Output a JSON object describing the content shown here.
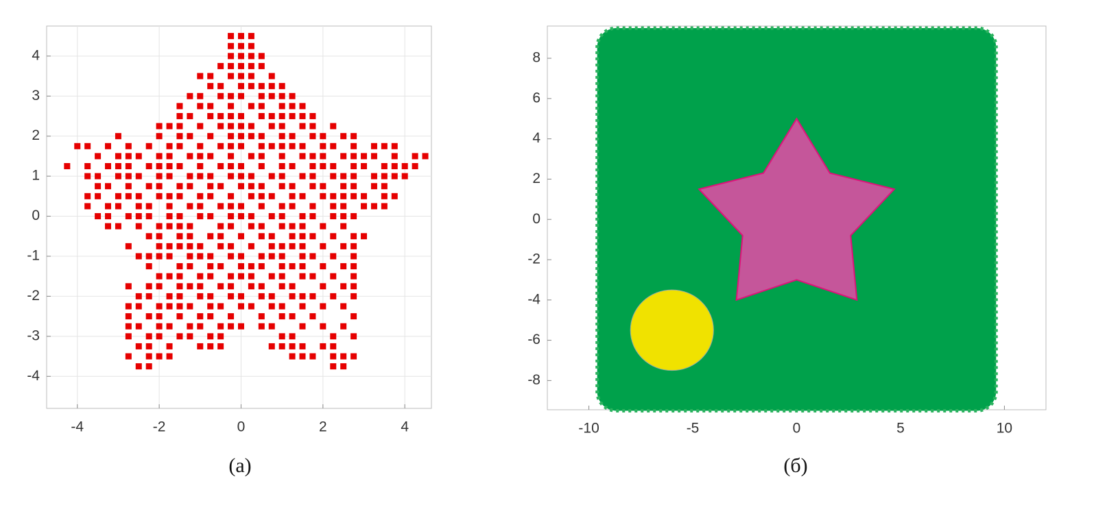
{
  "chart_data": [
    {
      "type": "scatter",
      "caption": "(a)",
      "color": "#e60000",
      "grid": true,
      "xlim": [
        -4.75,
        4.65
      ],
      "ylim": [
        -4.8,
        4.75
      ],
      "xticks": [
        -4,
        -2,
        0,
        2,
        4
      ],
      "yticks": [
        -4,
        -3,
        -2,
        -1,
        0,
        1,
        2,
        3,
        4
      ],
      "rows": [
        {
          "y": 4.5,
          "x": [
            -0.25,
            0,
            0.25
          ]
        },
        {
          "y": 4.25,
          "x": [
            -0.25,
            0,
            0.25
          ]
        },
        {
          "y": 4.0,
          "x": [
            -0.25,
            0,
            0.25,
            0.5
          ]
        },
        {
          "y": 3.75,
          "x": [
            -0.5,
            -0.25,
            0,
            0.25,
            0.5
          ]
        },
        {
          "y": 3.5,
          "x": [
            -1,
            -0.75,
            -0.25,
            0,
            0.25,
            0.75
          ]
        },
        {
          "y": 3.25,
          "x": [
            -0.75,
            -0.5,
            0,
            0.25,
            0.5,
            0.75,
            1
          ]
        },
        {
          "y": 3.0,
          "x": [
            -1.25,
            -1,
            -0.5,
            -0.25,
            0,
            0.5,
            0.75,
            1,
            1.25
          ]
        },
        {
          "y": 2.75,
          "x": [
            -1.5,
            -1,
            -0.75,
            -0.25,
            0.25,
            0.5,
            1,
            1.25,
            1.5
          ]
        },
        {
          "y": 2.5,
          "x": [
            -1.5,
            -1.25,
            -0.75,
            -0.5,
            -0.25,
            0,
            0.5,
            0.75,
            1,
            1.25,
            1.5,
            1.75
          ]
        },
        {
          "y": 2.25,
          "x": [
            -2,
            -1.75,
            -1.5,
            -1,
            -0.5,
            -0.25,
            0,
            0.25,
            0.75,
            1,
            1.5,
            1.75,
            2.25
          ]
        },
        {
          "y": 2.0,
          "x": [
            -3,
            -2,
            -1.5,
            -1.25,
            -0.75,
            -0.25,
            0,
            0.25,
            0.5,
            1,
            1.25,
            1.75,
            2,
            2.5,
            2.75
          ]
        },
        {
          "y": 1.75,
          "x": [
            -4,
            -3.75,
            -3.25,
            -2.75,
            -2.25,
            -1.75,
            -1.5,
            -1,
            -0.5,
            -0.25,
            0,
            0.5,
            0.75,
            1,
            1.25,
            1.5,
            2,
            2.25,
            2.75,
            3.25,
            3.5,
            3.75
          ]
        },
        {
          "y": 1.5,
          "x": [
            -3.5,
            -3,
            -2.75,
            -2.5,
            -2,
            -1.75,
            -1.25,
            -1,
            -0.75,
            -0.25,
            0.25,
            0.5,
            1,
            1.5,
            1.75,
            2,
            2.5,
            2.75,
            3,
            3.25,
            3.75,
            4.25,
            4.5
          ]
        },
        {
          "y": 1.25,
          "x": [
            -4.25,
            -3.75,
            -3.25,
            -3,
            -2.75,
            -2.25,
            -2,
            -1.75,
            -1.5,
            -1,
            -0.5,
            -0.25,
            0,
            0.5,
            1,
            1.25,
            1.75,
            2,
            2.25,
            2.75,
            3,
            3.5,
            3.75,
            4,
            4.25
          ]
        },
        {
          "y": 1.0,
          "x": [
            -3.75,
            -3.5,
            -3,
            -2.75,
            -2.5,
            -2,
            -1.75,
            -1.25,
            -1,
            -0.75,
            -0.25,
            0,
            0.25,
            0.75,
            1,
            1.5,
            1.75,
            2.25,
            2.5,
            2.75,
            3.25,
            3.5,
            3.75,
            4
          ]
        },
        {
          "y": 0.75,
          "x": [
            -3.5,
            -3.25,
            -2.75,
            -2.25,
            -2,
            -1.5,
            -1.25,
            -0.75,
            -0.5,
            0,
            0.25,
            0.5,
            1,
            1.25,
            1.75,
            2,
            2.5,
            2.75,
            3.25,
            3.5
          ]
        },
        {
          "y": 0.5,
          "x": [
            -3.75,
            -3.5,
            -3,
            -2.75,
            -2.5,
            -2,
            -1.75,
            -1.5,
            -1,
            -0.75,
            -0.25,
            0.25,
            0.5,
            0.75,
            1.25,
            1.5,
            2,
            2.25,
            2.5,
            2.75,
            3,
            3.5,
            3.75
          ]
        },
        {
          "y": 0.25,
          "x": [
            -3.75,
            -3.25,
            -3,
            -2.5,
            -2.25,
            -1.75,
            -1.25,
            -1,
            -0.5,
            -0.25,
            0,
            0.5,
            1,
            1.25,
            1.75,
            2.25,
            2.5,
            3,
            3.25,
            3.5
          ]
        },
        {
          "y": 0,
          "x": [
            -3.5,
            -3.25,
            -2.75,
            -2.5,
            -2.25,
            -1.75,
            -1.5,
            -1,
            -0.75,
            -0.25,
            0,
            0.25,
            0.75,
            1,
            1.5,
            1.75,
            2.25,
            2.5,
            2.75
          ]
        },
        {
          "y": -0.25,
          "x": [
            -3.25,
            -3,
            -2.5,
            -2,
            -1.75,
            -1.5,
            -1.25,
            -0.5,
            -0.25,
            0.25,
            0.5,
            1,
            1.25,
            1.5,
            2,
            2.5
          ]
        },
        {
          "y": -0.5,
          "x": [
            -2.25,
            -2,
            -1.5,
            -1.25,
            -0.75,
            -0.5,
            0,
            0.5,
            0.75,
            1.25,
            1.5,
            1.75,
            2.25,
            2.75,
            3
          ]
        },
        {
          "y": -0.75,
          "x": [
            -2.75,
            -2,
            -1.75,
            -1.5,
            -1.25,
            -1,
            -0.5,
            -0.25,
            0.25,
            0.75,
            1,
            1.25,
            1.5,
            2,
            2.5,
            2.75
          ]
        },
        {
          "y": -1.0,
          "x": [
            -2.5,
            -2.25,
            -2,
            -1.75,
            -1.25,
            -1,
            -0.75,
            -0.25,
            0,
            0.5,
            0.75,
            1,
            1.5,
            1.75,
            2.25,
            2.75
          ]
        },
        {
          "y": -1.25,
          "x": [
            -2.25,
            -1.5,
            -1.25,
            -0.75,
            -0.5,
            0,
            0.25,
            0.5,
            1,
            1.25,
            1.5,
            2,
            2.5,
            2.75
          ]
        },
        {
          "y": -1.5,
          "x": [
            -2,
            -1.75,
            -1.5,
            -1,
            -0.75,
            -0.25,
            0,
            0.25,
            0.75,
            1,
            1.5,
            1.75,
            2.25,
            2.75
          ]
        },
        {
          "y": -1.75,
          "x": [
            -2.75,
            -2.25,
            -2,
            -1.5,
            -1.25,
            -1,
            -0.5,
            -0.25,
            0.25,
            0.5,
            1,
            1.25,
            2,
            2.5,
            2.75
          ]
        },
        {
          "y": -2.0,
          "x": [
            -2.5,
            -2.25,
            -1.75,
            -1.5,
            -1,
            -0.75,
            -0.25,
            0,
            0.5,
            0.75,
            1.25,
            1.5,
            1.75,
            2.25,
            2.75
          ]
        },
        {
          "y": -2.25,
          "x": [
            -2.75,
            -2.5,
            -2,
            -1.75,
            -1.5,
            -1.25,
            -0.75,
            -0.5,
            0,
            0.25,
            0.75,
            1,
            1.5,
            2,
            2.5
          ]
        },
        {
          "y": -2.5,
          "x": [
            -2.75,
            -2.25,
            -2,
            -1.5,
            -1,
            -0.75,
            -0.25,
            0.5,
            1,
            1.25,
            1.75,
            2.75
          ]
        },
        {
          "y": -2.75,
          "x": [
            -2.75,
            -2.5,
            -2,
            -1.75,
            -1.25,
            -1,
            -0.5,
            -0.25,
            0,
            0.5,
            0.75,
            1.5,
            2,
            2.5
          ]
        },
        {
          "y": -3.0,
          "x": [
            -2.75,
            -2.25,
            -2,
            -1.5,
            -1.25,
            -0.75,
            -0.5,
            1,
            1.25,
            2.25,
            2.75
          ]
        },
        {
          "y": -3.25,
          "x": [
            -2.5,
            -2.25,
            -1.75,
            -1,
            -0.75,
            -0.5,
            0.75,
            1,
            1.25,
            1.5,
            2,
            2.25
          ]
        },
        {
          "y": -3.5,
          "x": [
            -2.75,
            -2.25,
            -2,
            -1.75,
            1.25,
            1.5,
            1.75,
            2.25,
            2.5,
            2.75
          ]
        },
        {
          "y": -3.75,
          "x": [
            -2.5,
            -2.25,
            2.25,
            2.5
          ]
        }
      ]
    },
    {
      "type": "shapes",
      "caption": "(б)",
      "grid": false,
      "xlim": [
        -12,
        12
      ],
      "ylim": [
        -9.45,
        9.6
      ],
      "xticks": [
        -10,
        -5,
        0,
        5,
        10
      ],
      "yticks": [
        -8,
        -6,
        -4,
        -2,
        0,
        2,
        4,
        6,
        8
      ],
      "square": {
        "x": [
          -9.6,
          9.6
        ],
        "y": [
          -9.5,
          9.5
        ],
        "color": "#00a14b"
      },
      "star": {
        "x": [
          0,
          1.6,
          4.7,
          2.6,
          2.9,
          0,
          -2.9,
          -2.6,
          -4.7,
          -1.6
        ],
        "y": [
          5,
          2.3,
          1.5,
          -0.8,
          -4,
          -3,
          -4,
          -0.8,
          1.5,
          2.3
        ],
        "color": "#c5569a"
      },
      "circle": {
        "cx": -6,
        "cy": -5.5,
        "r": 2,
        "color": "#f0e200"
      }
    }
  ]
}
